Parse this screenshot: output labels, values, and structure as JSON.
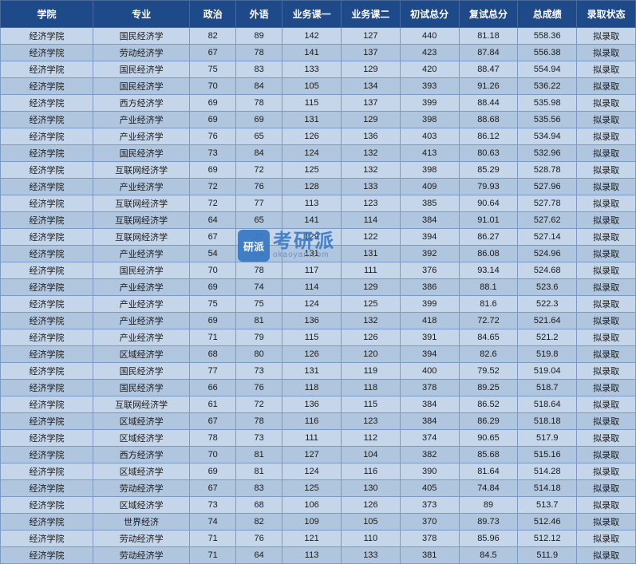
{
  "watermark": {
    "badge": "研派",
    "main": "考研派",
    "sub": "okaoyan.com"
  },
  "table": {
    "columns": [
      "学院",
      "专业",
      "政治",
      "外语",
      "业务课一",
      "业务课二",
      "初试总分",
      "复试总分",
      "总成绩",
      "录取状态"
    ],
    "rows": [
      [
        "经济学院",
        "国民经济学",
        "82",
        "89",
        "142",
        "127",
        "440",
        "81.18",
        "558.36",
        "拟录取"
      ],
      [
        "经济学院",
        "劳动经济学",
        "67",
        "78",
        "141",
        "137",
        "423",
        "87.84",
        "556.38",
        "拟录取"
      ],
      [
        "经济学院",
        "国民经济学",
        "75",
        "83",
        "133",
        "129",
        "420",
        "88.47",
        "554.94",
        "拟录取"
      ],
      [
        "经济学院",
        "国民经济学",
        "70",
        "84",
        "105",
        "134",
        "393",
        "91.26",
        "536.22",
        "拟录取"
      ],
      [
        "经济学院",
        "西方经济学",
        "69",
        "78",
        "115",
        "137",
        "399",
        "88.44",
        "535.98",
        "拟录取"
      ],
      [
        "经济学院",
        "产业经济学",
        "69",
        "69",
        "131",
        "129",
        "398",
        "88.68",
        "535.56",
        "拟录取"
      ],
      [
        "经济学院",
        "产业经济学",
        "76",
        "65",
        "126",
        "136",
        "403",
        "86.12",
        "534.94",
        "拟录取"
      ],
      [
        "经济学院",
        "国民经济学",
        "73",
        "84",
        "124",
        "132",
        "413",
        "80.63",
        "532.96",
        "拟录取"
      ],
      [
        "经济学院",
        "互联网经济学",
        "69",
        "72",
        "125",
        "132",
        "398",
        "85.29",
        "528.78",
        "拟录取"
      ],
      [
        "经济学院",
        "产业经济学",
        "72",
        "76",
        "128",
        "133",
        "409",
        "79.93",
        "527.96",
        "拟录取"
      ],
      [
        "经济学院",
        "互联网经济学",
        "72",
        "77",
        "113",
        "123",
        "385",
        "90.64",
        "527.78",
        "拟录取"
      ],
      [
        "经济学院",
        "互联网经济学",
        "64",
        "65",
        "141",
        "114",
        "384",
        "91.01",
        "527.62",
        "拟录取"
      ],
      [
        "经济学院",
        "互联网经济学",
        "67",
        "76",
        "129",
        "122",
        "394",
        "86.27",
        "527.14",
        "拟录取"
      ],
      [
        "经济学院",
        "产业经济学",
        "54",
        "76",
        "131",
        "131",
        "392",
        "86.08",
        "524.96",
        "拟录取"
      ],
      [
        "经济学院",
        "国民经济学",
        "70",
        "78",
        "117",
        "111",
        "376",
        "93.14",
        "524.68",
        "拟录取"
      ],
      [
        "经济学院",
        "产业经济学",
        "69",
        "74",
        "114",
        "129",
        "386",
        "88.1",
        "523.6",
        "拟录取"
      ],
      [
        "经济学院",
        "产业经济学",
        "75",
        "75",
        "124",
        "125",
        "399",
        "81.6",
        "522.3",
        "拟录取"
      ],
      [
        "经济学院",
        "产业经济学",
        "69",
        "81",
        "136",
        "132",
        "418",
        "72.72",
        "521.64",
        "拟录取"
      ],
      [
        "经济学院",
        "产业经济学",
        "71",
        "79",
        "115",
        "126",
        "391",
        "84.65",
        "521.2",
        "拟录取"
      ],
      [
        "经济学院",
        "区域经济学",
        "68",
        "80",
        "126",
        "120",
        "394",
        "82.6",
        "519.8",
        "拟录取"
      ],
      [
        "经济学院",
        "国民经济学",
        "77",
        "73",
        "131",
        "119",
        "400",
        "79.52",
        "519.04",
        "拟录取"
      ],
      [
        "经济学院",
        "国民经济学",
        "66",
        "76",
        "118",
        "118",
        "378",
        "89.25",
        "518.7",
        "拟录取"
      ],
      [
        "经济学院",
        "互联网经济学",
        "61",
        "72",
        "136",
        "115",
        "384",
        "86.52",
        "518.64",
        "拟录取"
      ],
      [
        "经济学院",
        "区域经济学",
        "67",
        "78",
        "116",
        "123",
        "384",
        "86.29",
        "518.18",
        "拟录取"
      ],
      [
        "经济学院",
        "区域经济学",
        "78",
        "73",
        "111",
        "112",
        "374",
        "90.65",
        "517.9",
        "拟录取"
      ],
      [
        "经济学院",
        "西方经济学",
        "70",
        "81",
        "127",
        "104",
        "382",
        "85.68",
        "515.16",
        "拟录取"
      ],
      [
        "经济学院",
        "区域经济学",
        "69",
        "81",
        "124",
        "116",
        "390",
        "81.64",
        "514.28",
        "拟录取"
      ],
      [
        "经济学院",
        "劳动经济学",
        "67",
        "83",
        "125",
        "130",
        "405",
        "74.84",
        "514.18",
        "拟录取"
      ],
      [
        "经济学院",
        "区域经济学",
        "73",
        "68",
        "106",
        "126",
        "373",
        "89",
        "513.7",
        "拟录取"
      ],
      [
        "经济学院",
        "世界经济",
        "74",
        "82",
        "109",
        "105",
        "370",
        "89.73",
        "512.46",
        "拟录取"
      ],
      [
        "经济学院",
        "劳动经济学",
        "71",
        "76",
        "121",
        "110",
        "378",
        "85.96",
        "512.12",
        "拟录取"
      ],
      [
        "经济学院",
        "劳动经济学",
        "71",
        "64",
        "113",
        "133",
        "381",
        "84.5",
        "511.9",
        "拟录取"
      ]
    ],
    "header_bg": "#1e4a8a",
    "header_text_color": "#ffffff",
    "row_odd_bg": "#c5d5ea",
    "row_even_bg": "#b0c5de",
    "border_color": "#7a9ac5",
    "text_color": "#1a1a1a"
  }
}
